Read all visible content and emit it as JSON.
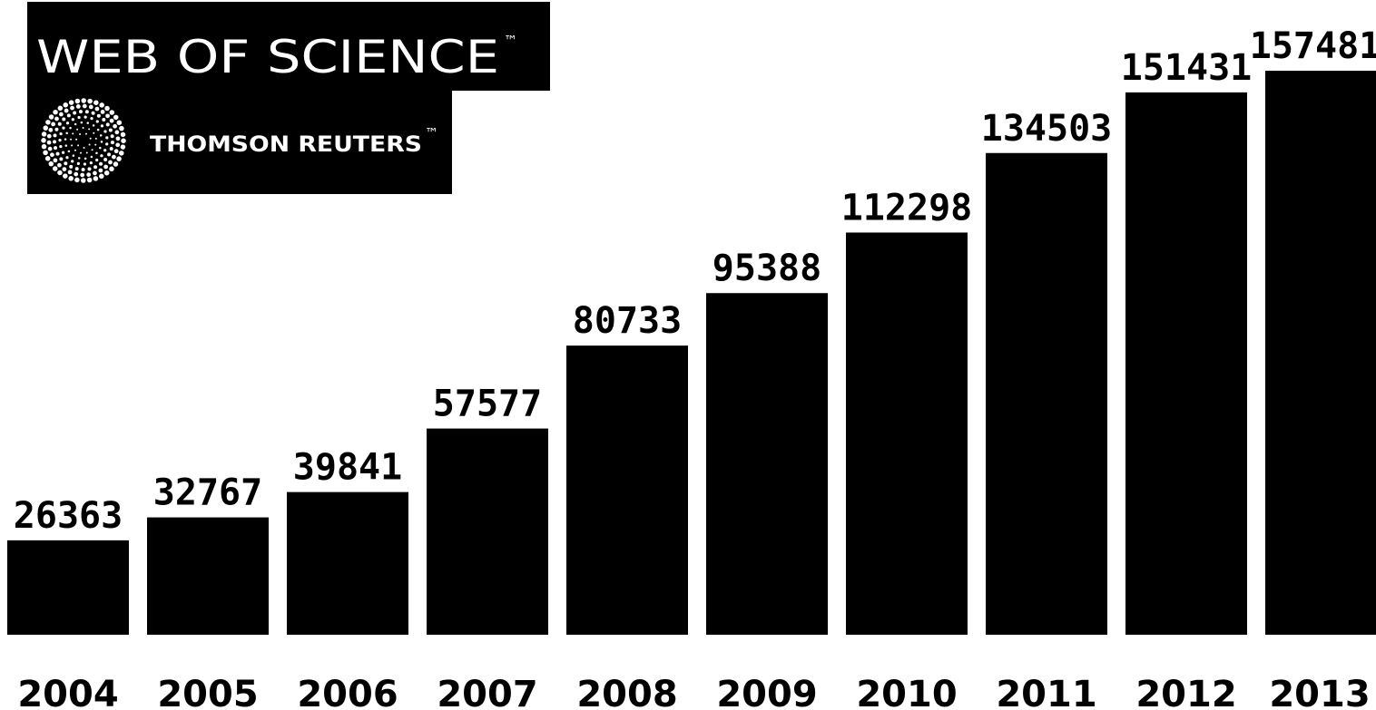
{
  "logo": {
    "title": "WEB OF SCIENCE",
    "title_mark": "™",
    "company": "THOMSON REUTERS",
    "company_mark": "™"
  },
  "colors": {
    "bar": "#000000",
    "background": "#ffffff",
    "text": "#000000",
    "logo_background": "#000000",
    "logo_text": "#ffffff"
  },
  "chart_data": {
    "type": "bar",
    "categories": [
      "2004",
      "2005",
      "2006",
      "2007",
      "2008",
      "2009",
      "2010",
      "2011",
      "2012",
      "2013"
    ],
    "values": [
      26363,
      32767,
      39841,
      57577,
      80733,
      95388,
      112298,
      134503,
      151431,
      157481
    ],
    "data_labels": [
      "26363",
      "32767",
      "39841",
      "57577",
      "80733",
      "95388",
      "112298",
      "134503",
      "151431",
      "157481"
    ],
    "title": "",
    "xlabel": "",
    "ylabel": "",
    "ylim": [
      0,
      157481
    ],
    "grid": false,
    "legend": "none"
  }
}
